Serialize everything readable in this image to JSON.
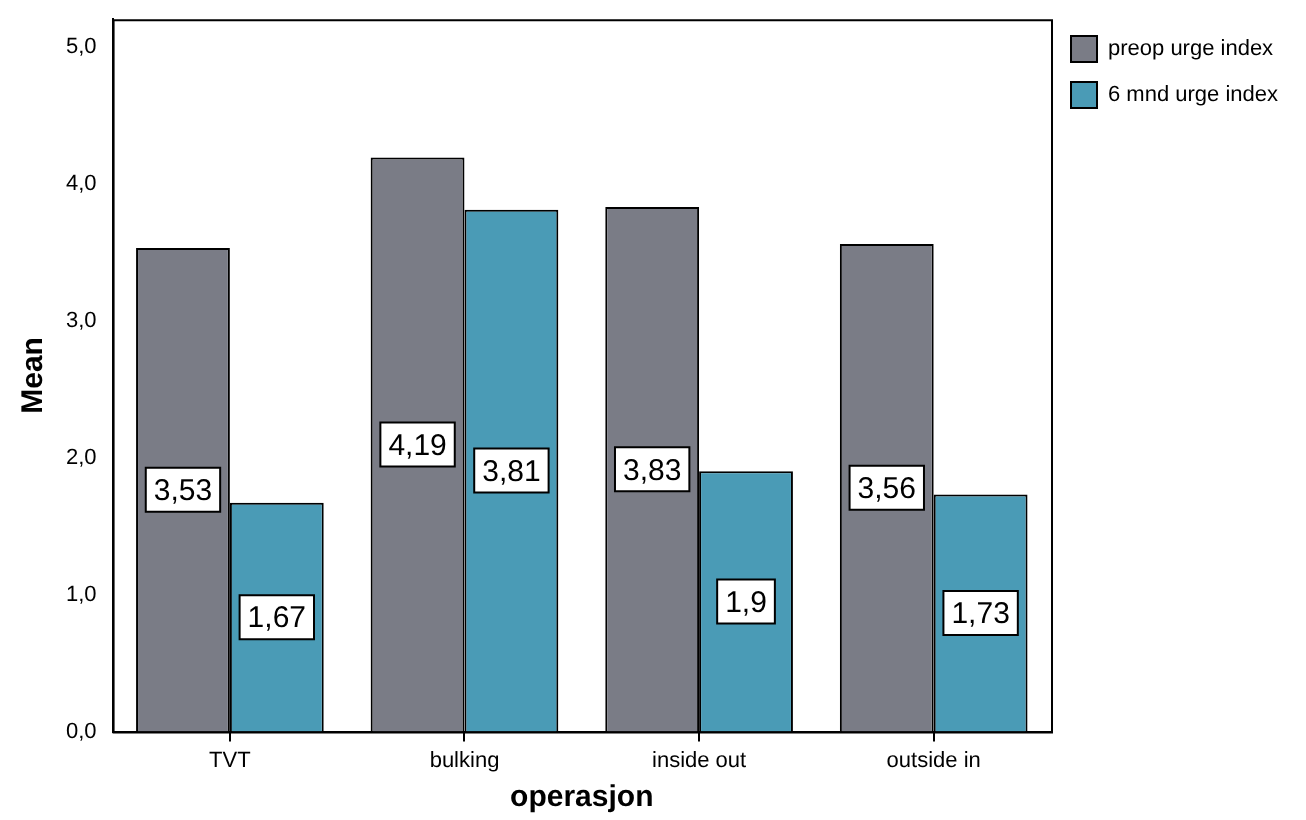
{
  "chart_data": {
    "type": "bar",
    "xlabel": "operasjon",
    "ylabel": "Mean",
    "categories": [
      "TVT",
      "bulking",
      "inside out",
      "outside in"
    ],
    "series": [
      {
        "name": "preop urge index",
        "color": "#7a7c86",
        "values": [
          3.53,
          4.19,
          3.83,
          3.56
        ],
        "value_labels": [
          "3,53",
          "4,19",
          "3,83",
          "3,56"
        ]
      },
      {
        "name": "6 mnd urge index",
        "color": "#4a9bb6",
        "values": [
          1.67,
          3.81,
          1.9,
          1.73
        ],
        "value_labels": [
          "1,67",
          "3,81",
          "1,9",
          "1,73"
        ]
      }
    ],
    "ylim": [
      0,
      5.2
    ],
    "yticks": [
      {
        "value": 0,
        "label": "0,0"
      },
      {
        "value": 1,
        "label": "1,0"
      },
      {
        "value": 2,
        "label": "2,0"
      },
      {
        "value": 3,
        "label": "3,0"
      },
      {
        "value": 4,
        "label": "4,0"
      },
      {
        "value": 5,
        "label": "5,0"
      }
    ],
    "grid": false,
    "legend": "top right"
  }
}
